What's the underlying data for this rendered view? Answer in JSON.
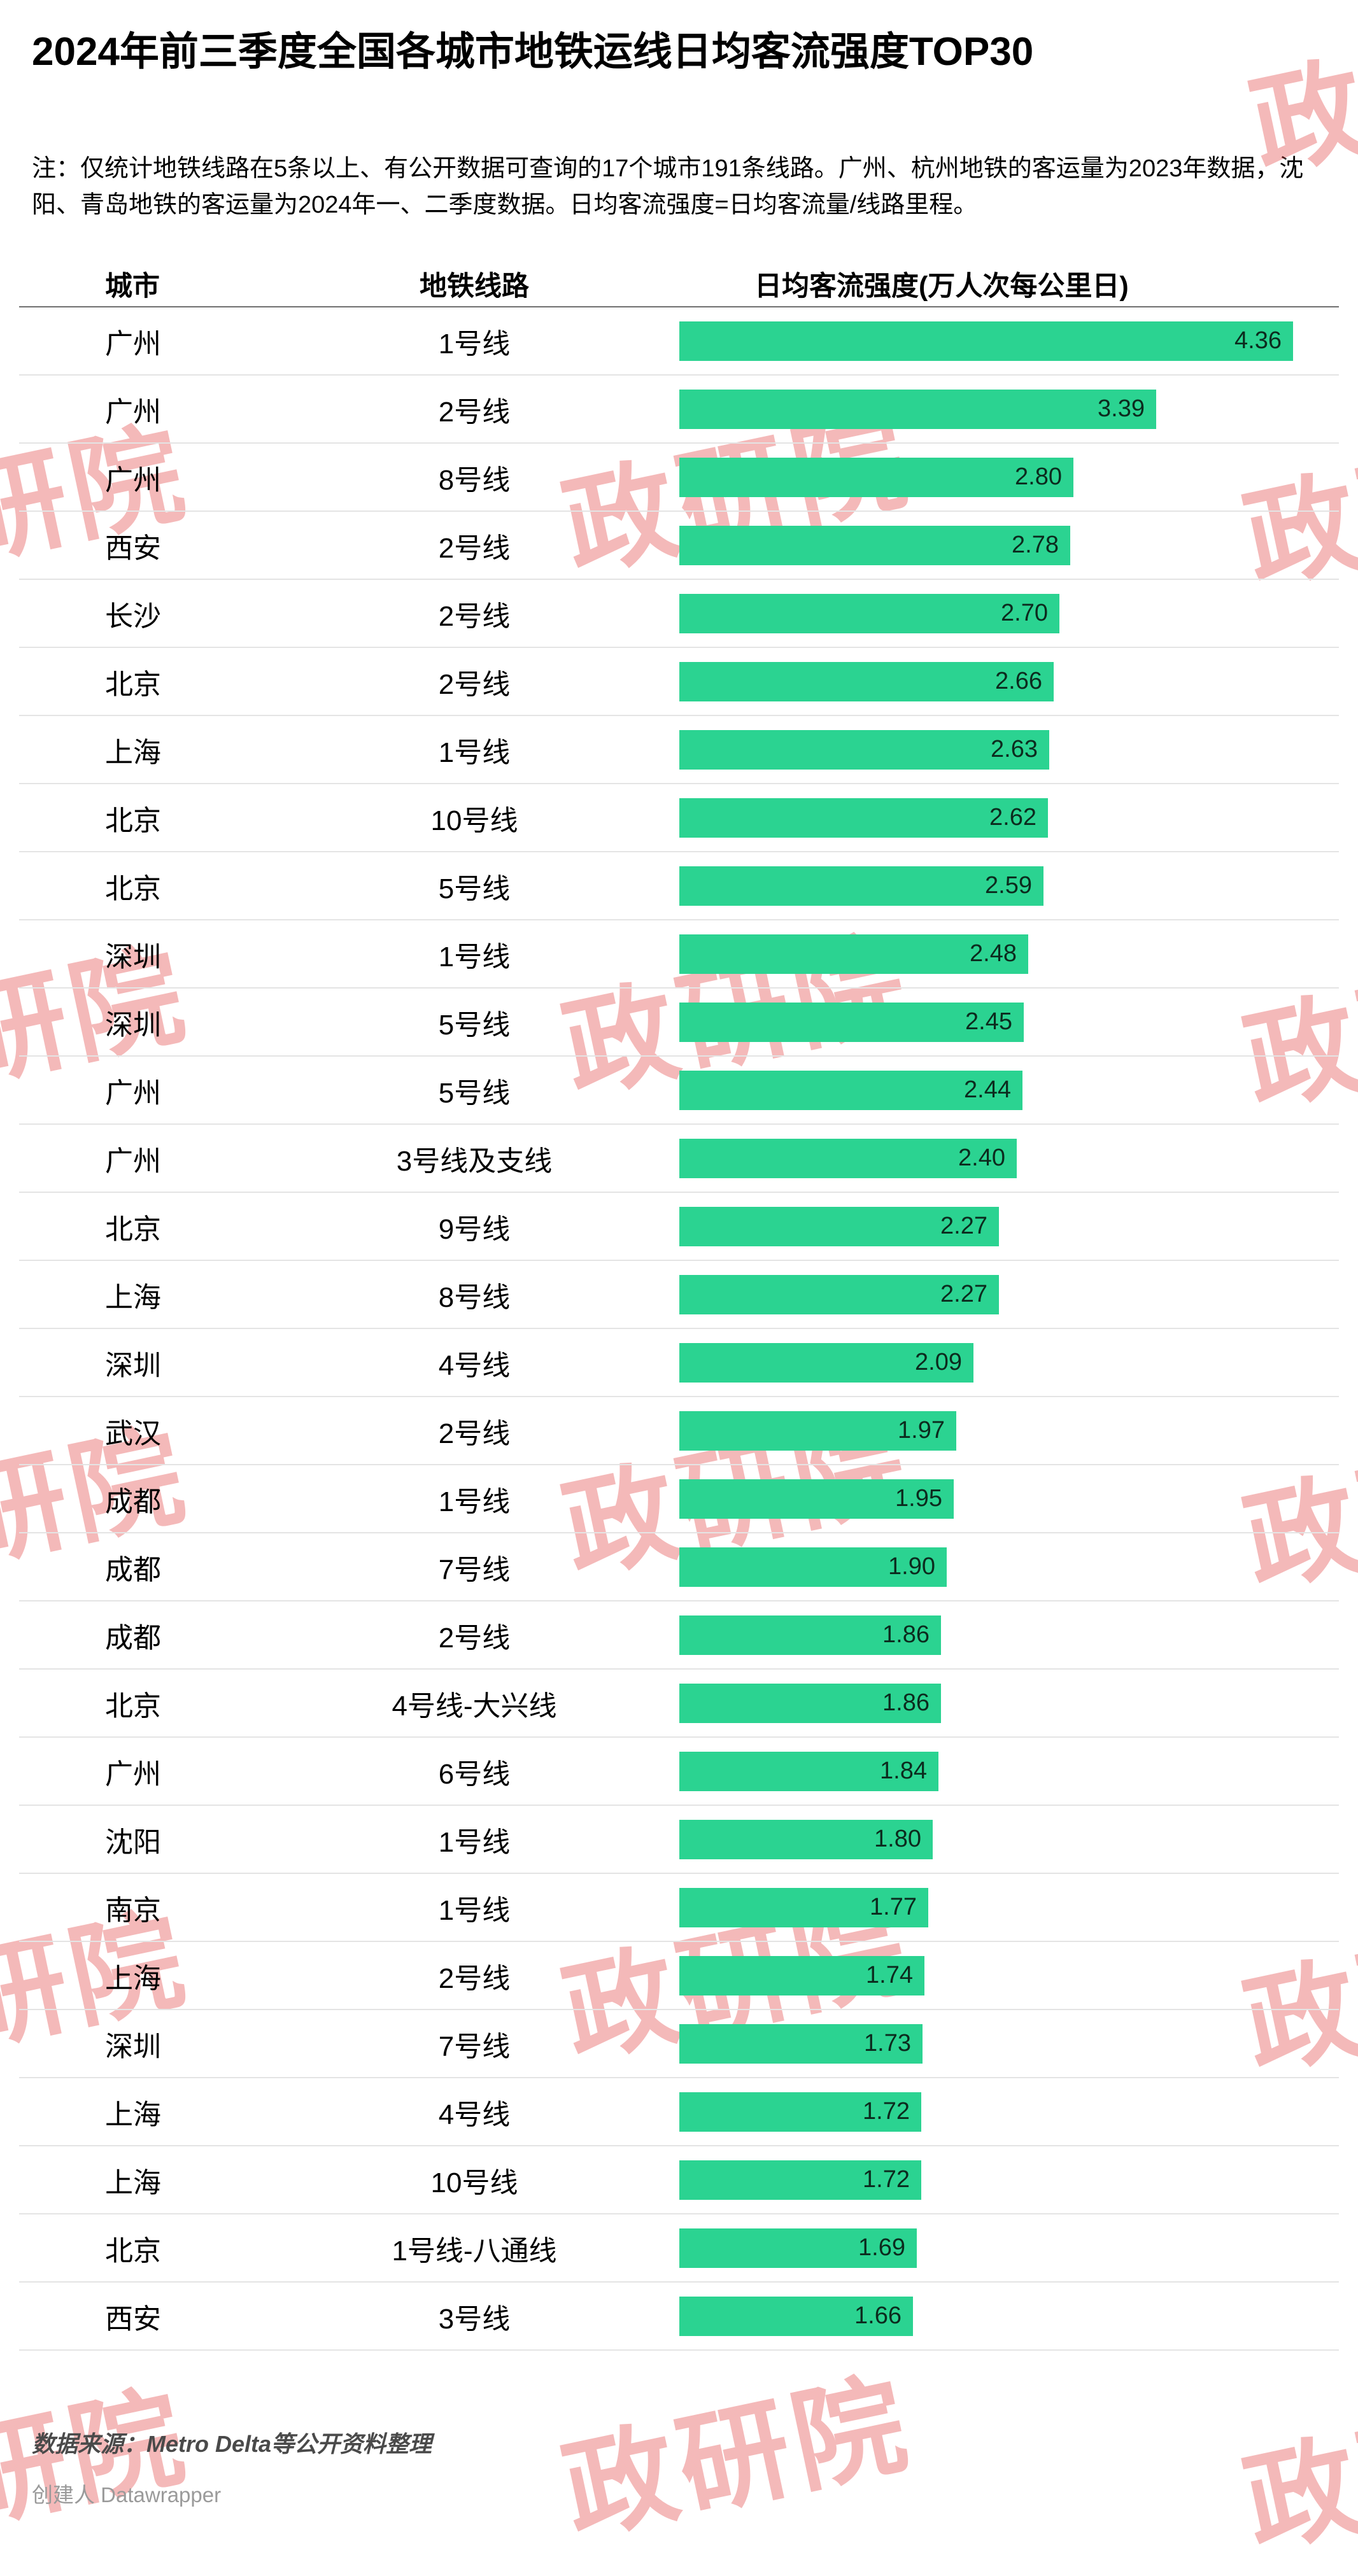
{
  "title": "2024年前三季度全国各城市地铁运线日均客流强度TOP30",
  "note": "注：仅统计地铁线路在5条以上、有公开数据可查询的17个城市191条线路。广州、杭州地铁的客运量为2023年数据，沈阳、青岛地铁的客运量为2024年一、二季度数据。日均客流强度=日均客流量/线路里程。",
  "watermark": {
    "text": "政研院",
    "color": "#e02a2a"
  },
  "chart_data": {
    "type": "bar",
    "orientation": "horizontal",
    "title": "2024年前三季度全国各城市地铁运线日均客流强度TOP30",
    "columns": [
      "城市",
      "地铁线路",
      "日均客流强度(万人次每公里日)"
    ],
    "bar_color": "#2bd391",
    "xlim": [
      0,
      4.5
    ],
    "rows": [
      {
        "city": "广州",
        "line": "1号线",
        "value": 4.36,
        "label": "4.36"
      },
      {
        "city": "广州",
        "line": "2号线",
        "value": 3.39,
        "label": "3.39"
      },
      {
        "city": "广州",
        "line": "8号线",
        "value": 2.8,
        "label": "2.80"
      },
      {
        "city": "西安",
        "line": "2号线",
        "value": 2.78,
        "label": "2.78"
      },
      {
        "city": "长沙",
        "line": "2号线",
        "value": 2.7,
        "label": "2.70"
      },
      {
        "city": "北京",
        "line": "2号线",
        "value": 2.66,
        "label": "2.66"
      },
      {
        "city": "上海",
        "line": "1号线",
        "value": 2.63,
        "label": "2.63"
      },
      {
        "city": "北京",
        "line": "10号线",
        "value": 2.62,
        "label": "2.62"
      },
      {
        "city": "北京",
        "line": "5号线",
        "value": 2.59,
        "label": "2.59"
      },
      {
        "city": "深圳",
        "line": "1号线",
        "value": 2.48,
        "label": "2.48"
      },
      {
        "city": "深圳",
        "line": "5号线",
        "value": 2.45,
        "label": "2.45"
      },
      {
        "city": "广州",
        "line": "5号线",
        "value": 2.44,
        "label": "2.44"
      },
      {
        "city": "广州",
        "line": "3号线及支线",
        "value": 2.4,
        "label": "2.40"
      },
      {
        "city": "北京",
        "line": "9号线",
        "value": 2.27,
        "label": "2.27"
      },
      {
        "city": "上海",
        "line": "8号线",
        "value": 2.27,
        "label": "2.27"
      },
      {
        "city": "深圳",
        "line": "4号线",
        "value": 2.09,
        "label": "2.09"
      },
      {
        "city": "武汉",
        "line": "2号线",
        "value": 1.97,
        "label": "1.97"
      },
      {
        "city": "成都",
        "line": "1号线",
        "value": 1.95,
        "label": "1.95"
      },
      {
        "city": "成都",
        "line": "7号线",
        "value": 1.9,
        "label": "1.90"
      },
      {
        "city": "成都",
        "line": "2号线",
        "value": 1.86,
        "label": "1.86"
      },
      {
        "city": "北京",
        "line": "4号线-大兴线",
        "value": 1.86,
        "label": "1.86"
      },
      {
        "city": "广州",
        "line": "6号线",
        "value": 1.84,
        "label": "1.84"
      },
      {
        "city": "沈阳",
        "line": "1号线",
        "value": 1.8,
        "label": "1.80"
      },
      {
        "city": "南京",
        "line": "1号线",
        "value": 1.77,
        "label": "1.77"
      },
      {
        "city": "上海",
        "line": "2号线",
        "value": 1.74,
        "label": "1.74"
      },
      {
        "city": "深圳",
        "line": "7号线",
        "value": 1.73,
        "label": "1.73"
      },
      {
        "city": "上海",
        "line": "4号线",
        "value": 1.72,
        "label": "1.72"
      },
      {
        "city": "上海",
        "line": "10号线",
        "value": 1.72,
        "label": "1.72"
      },
      {
        "city": "北京",
        "line": "1号线-八通线",
        "value": 1.69,
        "label": "1.69"
      },
      {
        "city": "西安",
        "line": "3号线",
        "value": 1.66,
        "label": "1.66"
      }
    ]
  },
  "footer": {
    "source": "数据来源：Metro Delta等公开资料整理",
    "credit": "创建人 Datawrapper"
  }
}
